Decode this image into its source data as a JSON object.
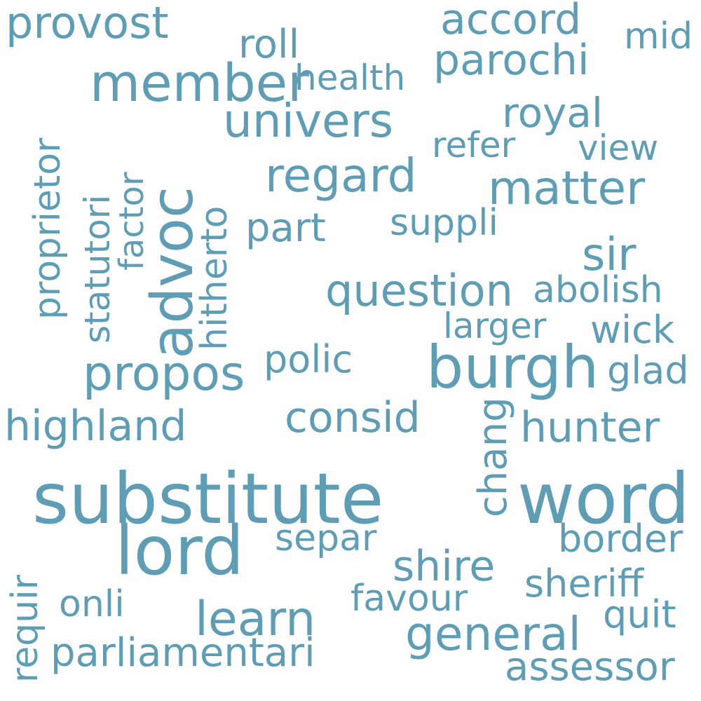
{
  "color": "#5f9db5",
  "words": {
    "substitute": "substitute",
    "word": "word",
    "lord": "lord",
    "burgh": "burgh",
    "advoc": "advoc",
    "member": "member",
    "propos": "propos",
    "univers": "univers",
    "question": "question",
    "matter": "matter",
    "regard": "regard",
    "general": "general",
    "learn": "learn",
    "parliamentari": "parliamentari",
    "consid": "consid",
    "highland": "highland",
    "hunter": "hunter",
    "provost": "provost",
    "accord": "accord",
    "parochi": "parochi",
    "royal": "royal",
    "abolish": "abolish",
    "sir": "sir",
    "sheriff": "sheriff",
    "assessor": "assessor",
    "border": "border",
    "shire": "shire",
    "roll": "roll",
    "health": "health",
    "mid": "mid",
    "refer": "refer",
    "view": "view",
    "part": "part",
    "suppli": "suppli",
    "larger": "larger",
    "wick": "wick",
    "polic": "polic",
    "glad": "glad",
    "separ": "separ",
    "favour": "favour",
    "onli": "onli",
    "quit": "quit",
    "chang": "chang",
    "proprietor": "proprietor",
    "statutori": "statutori",
    "factor": "factor",
    "hitherto": "hitherto",
    "requir": "requir"
  }
}
